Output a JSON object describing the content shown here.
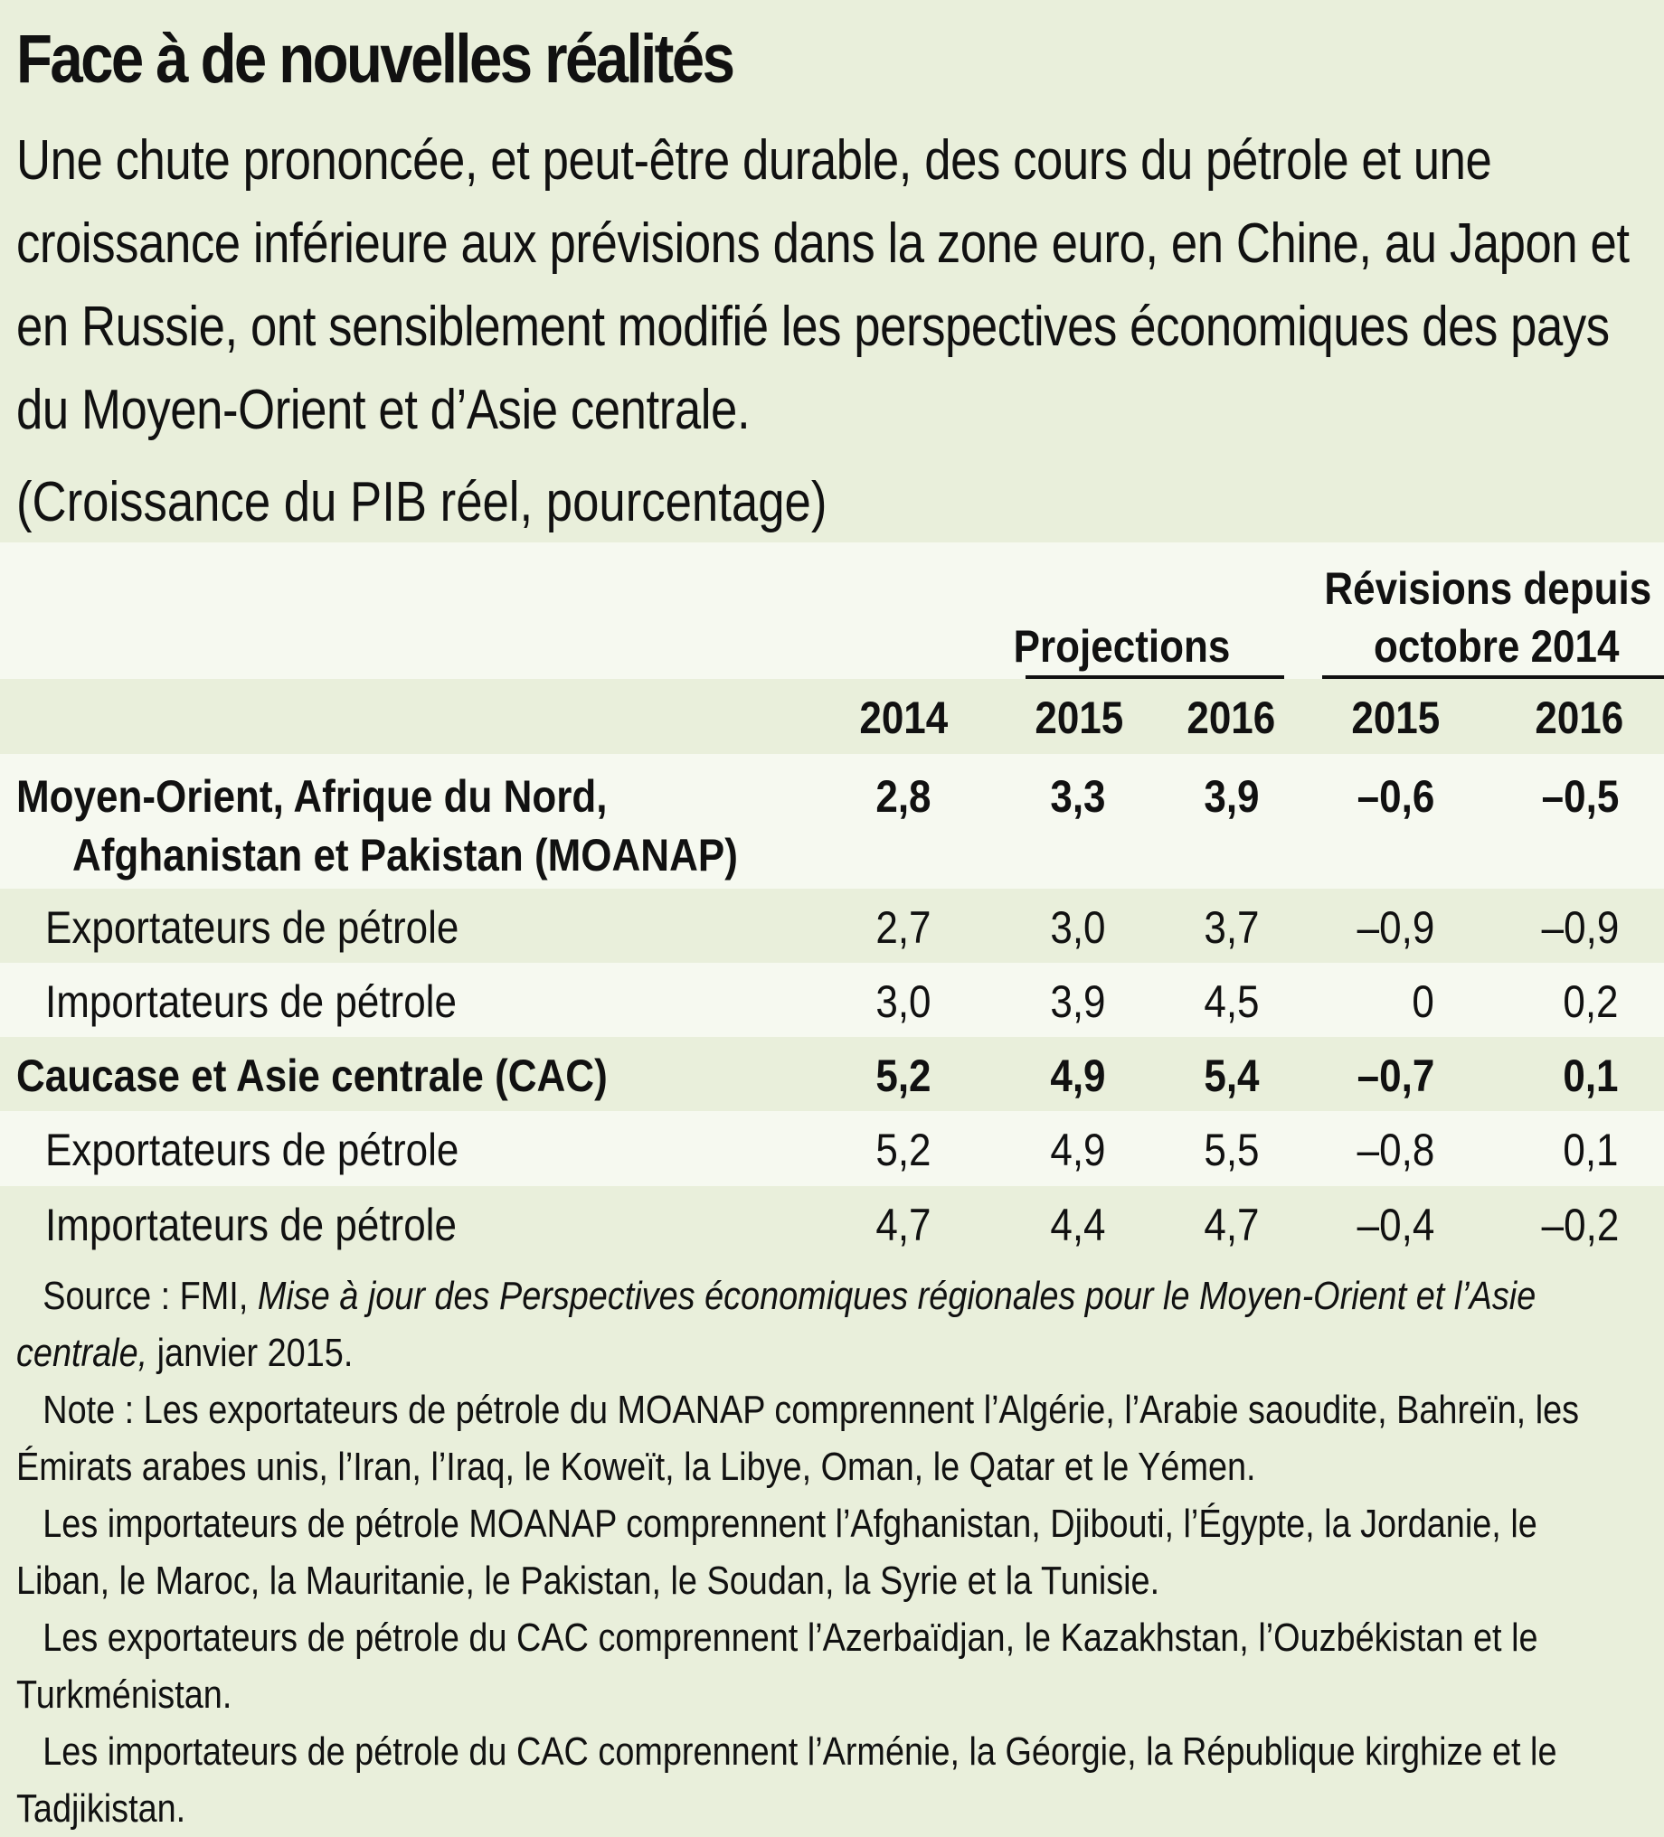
{
  "title": "Face à de nouvelles réalités",
  "subtitle": "Une chute prononcée, et peut-être durable, des cours du pétrole et une croissance inférieure aux prévisions dans la zone euro, en Chine, au Japon et en Russie, ont sensiblement modifié les perspectives économiques des pays du Moyen-Orient et d’Asie centrale.",
  "unit": "(Croissance du PIB réel, pourcentage)",
  "table": {
    "group_headers": {
      "projections": "Projections",
      "revisions_line1": "Révisions depuis",
      "revisions_line2": "octobre 2014"
    },
    "columns": [
      "2014",
      "2015",
      "2016",
      "2015",
      "2016"
    ],
    "rows": [
      {
        "label": "Moyen-Orient, Afrique du Nord,",
        "label2": "Afghanistan et Pakistan (MOANAP)",
        "bold": true,
        "values": [
          "2,8",
          "3,3",
          "3,9",
          "–0,6",
          "–0,5"
        ]
      },
      {
        "label": "Exportateurs de pétrole",
        "values": [
          "2,7",
          "3,0",
          "3,7",
          "–0,9",
          "–0,9"
        ]
      },
      {
        "label": "Importateurs de pétrole",
        "values": [
          "3,0",
          "3,9",
          "4,5",
          "0",
          "0,2"
        ]
      },
      {
        "label": "Caucase et Asie centrale (CAC)",
        "bold": true,
        "values": [
          "5,2",
          "4,9",
          "5,4",
          "–0,7",
          "0,1"
        ]
      },
      {
        "label": "Exportateurs de pétrole",
        "values": [
          "5,2",
          "4,9",
          "5,5",
          "–0,8",
          "0,1"
        ]
      },
      {
        "label": "Importateurs de pétrole",
        "values": [
          "4,7",
          "4,4",
          "4,7",
          "–0,4",
          "–0,2"
        ]
      }
    ]
  },
  "source": {
    "prefix": "Source : FMI, ",
    "title": "Mise à jour des Perspectives économiques régionales pour le Moyen-Orient et l’Asie centrale,",
    "suffix": " janvier 2015."
  },
  "notes": [
    "Note : Les exportateurs de pétrole du MOANAP comprennent l’Algérie, l’Arabie saoudite, Bahreïn, les Émirats arabes unis, l’Iran, l’Iraq, le Koweït, la Libye, Oman, le Qatar et le Yémen.",
    "Les importateurs de pétrole MOANAP comprennent l’Afghanistan, Djibouti, l’Égypte, la Jordanie, le Liban, le Maroc, la Mauritanie, le Pakistan, le Soudan, la Syrie et la Tunisie.",
    "Les exportateurs de pétrole du CAC comprennent l’Azerbaïdjan, le Kazakhstan, l’Ouzbékistan et le Turkménistan.",
    "Les importateurs de pétrole du CAC comprennent l’Arménie, la Géorgie, la République kirghize et le Tadjikistan."
  ],
  "colors": {
    "header_bg": "#e9efdb",
    "row_light": "#f6f9f0",
    "row_green": "#e9efdb"
  }
}
